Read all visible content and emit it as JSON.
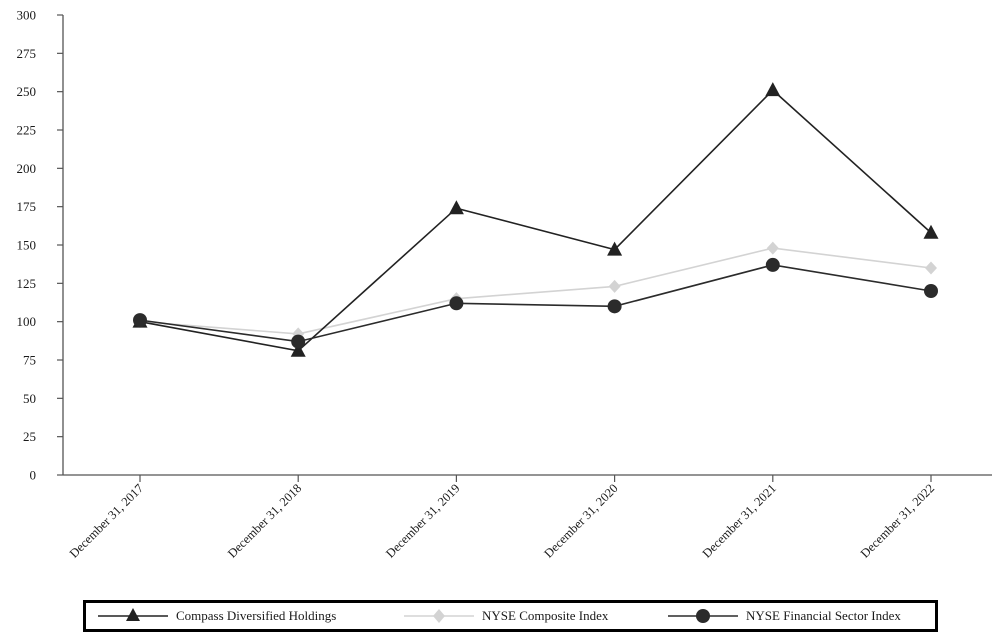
{
  "chart_data": {
    "type": "line",
    "categories": [
      "December 31, 2017",
      "December 31, 2018",
      "December 31, 2019",
      "December 31, 2020",
      "December 31, 2021",
      "December 31, 2022"
    ],
    "ylim": [
      0,
      300
    ],
    "yticks": [
      0,
      25,
      50,
      75,
      100,
      125,
      150,
      175,
      200,
      225,
      250,
      275,
      300
    ],
    "grid": false,
    "legend_position": "bottom",
    "series": [
      {
        "name": "Compass Diversified Holdings",
        "values": [
          100,
          81,
          174,
          147,
          251,
          158
        ],
        "color": "#222222",
        "marker": "triangle"
      },
      {
        "name": "NYSE Composite Index",
        "values": [
          100,
          92,
          115,
          123,
          148,
          135
        ],
        "color": "#d3d3d3",
        "marker": "diamond"
      },
      {
        "name": "NYSE Financial Sector Index",
        "values": [
          101,
          87,
          112,
          110,
          137,
          120
        ],
        "color": "#2b2b2b",
        "marker": "circle"
      }
    ]
  }
}
